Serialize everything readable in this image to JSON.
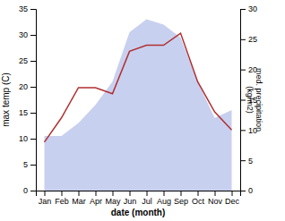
{
  "chart_data": {
    "type": "area",
    "xlabel": "date (month)",
    "ylabel": "max temp (C)",
    "y2label": "med. precipitation\n(kg/m2)",
    "categories": [
      "Jan",
      "Feb",
      "Mar",
      "Apr",
      "May",
      "Jun",
      "Jul",
      "Aug",
      "Sep",
      "Oct",
      "Nov",
      "Dec"
    ],
    "series": [
      {
        "type": "area",
        "color": "#c8d0f0",
        "values": [
          10.5,
          10.5,
          13.0,
          16.5,
          21.0,
          30.5,
          33.0,
          32.0,
          29.5,
          21.0,
          14.0,
          15.5
        ]
      },
      {
        "type": "line",
        "axis": "y2",
        "color": "#b03030",
        "values": [
          8.0,
          12.0,
          17.0,
          17.0,
          16.0,
          23.0,
          24.0,
          24.0,
          26.0,
          18.0,
          13.0,
          10.0
        ]
      }
    ],
    "ylim": [
      0,
      35
    ],
    "yticks": [
      0,
      5,
      10,
      15,
      20,
      25,
      30,
      35
    ],
    "y2lim": [
      0,
      30
    ],
    "y2ticks": [
      0,
      5,
      10,
      15,
      20,
      25,
      30
    ],
    "grid": false
  }
}
